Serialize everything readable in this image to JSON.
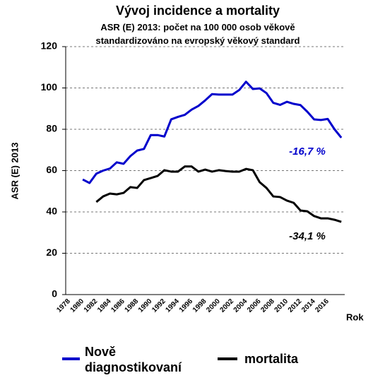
{
  "chart_data": {
    "type": "line",
    "title": "Vývoj incidence a mortality",
    "subtitle": "ASR (E) 2013: počet na 100 000 osob věkově standardizováno na evropský věkový standard",
    "y_label": "ASR (E) 2013",
    "x_label": "Rok",
    "categories": [
      "1978",
      null,
      "1980",
      null,
      "1982",
      null,
      "1984",
      null,
      "1986",
      null,
      "1988",
      null,
      "1990",
      null,
      "1992",
      null,
      "1994",
      null,
      "1996",
      null,
      "1998",
      null,
      "2000",
      null,
      "2002",
      null,
      "2004",
      null,
      "2006",
      null,
      "2008",
      null,
      "2010",
      null,
      "2012",
      null,
      "2014",
      null,
      "2016",
      null,
      null
    ],
    "series": [
      {
        "name": "Nově diagnostikovaní",
        "color": "#0000cc",
        "values": [
          null,
          null,
          55.7,
          54,
          58.5,
          60,
          61,
          64,
          63.3,
          67,
          69.7,
          70.5,
          77.2,
          77.2,
          76.5,
          84.8,
          86,
          87,
          89.5,
          91.3,
          94,
          97,
          96.8,
          96.8,
          96.8,
          99,
          103,
          99.5,
          99.8,
          97.5,
          92.8,
          91.8,
          93.3,
          92.3,
          91.7,
          88.5,
          84.8,
          84.5,
          85,
          80,
          75.9
        ]
      },
      {
        "name": "mortalita",
        "color": "#000000",
        "values": [
          null,
          null,
          null,
          null,
          44.8,
          47.5,
          48.9,
          48.5,
          49.2,
          52,
          51.6,
          55.4,
          56.4,
          57.4,
          60.2,
          59.5,
          59.5,
          62,
          62,
          59.5,
          60.5,
          59.5,
          60.2,
          59.8,
          59.5,
          59.5,
          60.8,
          60.2,
          54.4,
          51.6,
          47.5,
          47.2,
          45.5,
          44.4,
          40.7,
          40.3,
          38,
          36.9,
          36.9,
          36.2,
          35.2
        ]
      }
    ],
    "annotations": [
      "-16,7 %",
      "-34,1 %"
    ],
    "ylim": [
      0,
      120
    ],
    "yticks": [
      0,
      20,
      40,
      60,
      80,
      100,
      120
    ],
    "grid": true
  }
}
